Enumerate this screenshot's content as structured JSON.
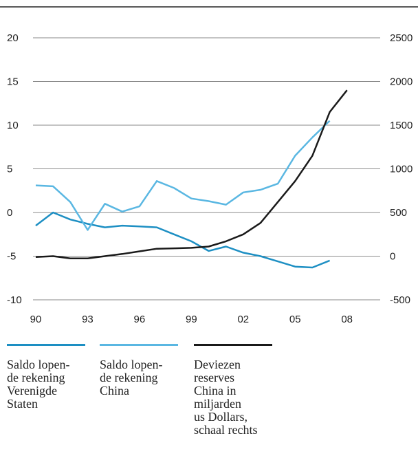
{
  "chart_data": {
    "type": "line",
    "x_ticks": [
      "90",
      "93",
      "96",
      "99",
      "02",
      "05",
      "08"
    ],
    "x_range": [
      1990,
      2010
    ],
    "y_left": {
      "ticks": [
        "20",
        "15",
        "10",
        "5",
        "0",
        "-5",
        "-10"
      ],
      "range": [
        -10,
        20
      ]
    },
    "y_right": {
      "ticks": [
        "2500",
        "2000",
        "1500",
        "1000",
        "500",
        "0",
        "-500"
      ],
      "range": [
        -500,
        2500
      ]
    },
    "series": [
      {
        "name": "Saldo lopen-\nde rekening\nVerenigde\nStaten",
        "axis": "left",
        "color": "#1d8fc3",
        "x": [
          1990,
          1991,
          1992,
          1993,
          1994,
          1995,
          1996,
          1997,
          1998,
          1999,
          2000,
          2001,
          2002,
          2003,
          2004,
          2005,
          2006,
          2007,
          2008
        ],
        "y": [
          -1.5,
          0,
          -0.8,
          -1.3,
          -1.7,
          -1.5,
          -1.6,
          -1.7,
          -2.5,
          -3.3,
          -4.4,
          -3.9,
          -4.6,
          -5,
          -5.6,
          -6.2,
          -6.3,
          -5.5,
          null
        ]
      },
      {
        "name": "Saldo lopen-\nde rekening\nChina",
        "axis": "left",
        "color": "#5ab7e2",
        "x": [
          1990,
          1991,
          1992,
          1993,
          1994,
          1995,
          1996,
          1997,
          1998,
          1999,
          2000,
          2001,
          2002,
          2003,
          2004,
          2005,
          2006,
          2007,
          2008
        ],
        "y": [
          3.1,
          3.0,
          1.2,
          -2.0,
          1.0,
          0.1,
          0.7,
          3.6,
          2.8,
          1.6,
          1.3,
          0.9,
          2.3,
          2.6,
          3.3,
          6.5,
          8.6,
          10.5,
          null
        ]
      },
      {
        "name": "Deviezen\nreserves\nChina in\nmiljarden\nus Dollars,\nschaal rechts",
        "axis": "right",
        "color": "#1a1a1a",
        "x": [
          1990,
          1991,
          1992,
          1993,
          1994,
          1995,
          1996,
          1997,
          1998,
          1999,
          2000,
          2001,
          2002,
          2003,
          2004,
          2005,
          2006,
          2007,
          2008,
          2009
        ],
        "y": [
          -10,
          0,
          -25,
          -25,
          0,
          25,
          55,
          85,
          90,
          95,
          110,
          170,
          250,
          380,
          620,
          860,
          1150,
          1650,
          1900,
          null
        ]
      }
    ]
  }
}
